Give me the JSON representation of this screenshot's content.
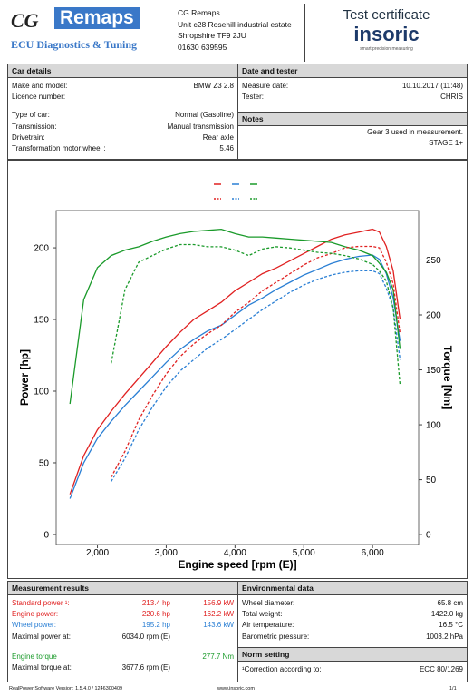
{
  "header": {
    "logo_left": "CG",
    "logo_right": "Remaps",
    "tagline": "ECU Diagnostics & Tuning",
    "address": [
      "CG Remaps",
      "Unit c28 Rosehill industrial estate",
      "Shropshire TF9 2JU",
      "01630 639595"
    ],
    "cert_title": "Test certificate",
    "brand": "insoric",
    "brand_tagline": "smart precision measuring"
  },
  "car_details": {
    "title": "Car details",
    "rows": [
      [
        "Make and model:",
        "BMW Z3 2.8"
      ],
      [
        "Licence number:"
      ],
      [
        "Type of car:",
        "Normal (Gasoline)"
      ],
      [
        "Transmission:",
        "Manual transmission"
      ],
      [
        "Drivetrain:",
        "Rear axle"
      ],
      [
        "Transformation motor:wheel :",
        "5.46"
      ]
    ]
  },
  "date_tester": {
    "title": "Date and tester",
    "rows": [
      [
        "Measure date:",
        "10.10.2017 (11:48)"
      ],
      [
        "Tester:",
        "CHRIS"
      ]
    ]
  },
  "notes": {
    "title": "Notes",
    "lines": [
      "Gear 3 used in measurement.",
      "STAGE 1+"
    ]
  },
  "chart": {
    "type": "line",
    "x_label": "Engine speed [rpm (E)]",
    "y_label": "Power [hp]",
    "y2_label": "Torque [Nm]",
    "x": [
      1600,
      1800,
      2000,
      2200,
      2400,
      2600,
      2800,
      3000,
      3200,
      3400,
      3600,
      3800,
      4000,
      4200,
      4400,
      4600,
      4800,
      5000,
      5200,
      5400,
      5600,
      5800,
      6000,
      6100,
      6200,
      6300,
      6400
    ],
    "xlim": [
      1400,
      6670
    ],
    "ylim": [
      -7,
      226
    ],
    "y2lim": [
      -9,
      295
    ],
    "xticks": [
      {
        "value": 2000,
        "label": "2,000"
      },
      {
        "value": 3000,
        "label": "3,000"
      },
      {
        "value": 4000,
        "label": "4,000"
      },
      {
        "value": 5000,
        "label": "5,000"
      },
      {
        "value": 6000,
        "label": "6,000"
      }
    ],
    "yticks": [
      0,
      50,
      100,
      150,
      200
    ],
    "y2ticks": [
      0,
      50,
      100,
      150,
      200,
      250
    ],
    "series": [
      {
        "color": "#e02020",
        "style": "solid",
        "values": [
          28,
          55,
          73,
          86,
          98,
          109,
          120,
          131,
          141,
          150,
          156,
          162,
          170,
          176,
          182,
          186,
          191,
          196,
          201,
          206,
          209,
          211,
          213,
          211,
          201,
          184,
          150
        ]
      },
      {
        "color": "#2a7fd4",
        "style": "solid",
        "values": [
          25,
          50,
          67,
          79,
          90,
          100,
          110,
          120,
          129,
          136,
          142,
          146,
          153,
          160,
          165,
          171,
          176,
          181,
          185,
          189,
          192,
          194,
          195,
          192,
          182,
          165,
          135
        ]
      },
      {
        "color": "#1a9a2a",
        "style": "solid",
        "axis": "y2",
        "values": [
          119,
          214,
          243,
          254,
          259,
          262,
          267,
          271,
          274,
          276,
          277,
          278,
          274,
          271,
          271,
          270,
          269,
          268,
          267,
          266,
          262,
          259,
          254,
          247,
          239,
          223,
          169
        ]
      },
      {
        "color": "#e02020",
        "style": "dashed",
        "values": [
          null,
          null,
          null,
          40,
          58,
          80,
          97,
          112,
          124,
          133,
          140,
          146,
          155,
          162,
          170,
          176,
          182,
          188,
          193,
          196,
          200,
          201,
          201,
          200,
          190,
          175,
          140
        ]
      },
      {
        "color": "#2a7fd4",
        "style": "dashed",
        "values": [
          null,
          null,
          null,
          37,
          53,
          73,
          89,
          103,
          114,
          122,
          130,
          136,
          143,
          150,
          157,
          163,
          169,
          174,
          178,
          181,
          183,
          184,
          184,
          182,
          172,
          158,
          122
        ]
      },
      {
        "color": "#1a9a2a",
        "style": "dashed",
        "axis": "y2",
        "values": [
          null,
          null,
          null,
          156,
          223,
          248,
          254,
          260,
          264,
          264,
          262,
          262,
          259,
          254,
          260,
          262,
          261,
          259,
          257,
          256,
          254,
          251,
          246,
          240,
          231,
          206,
          136
        ]
      }
    ]
  },
  "results": {
    "title": "Measurement results",
    "rows": [
      [
        "Standard power ¹:",
        "213.4 hp",
        "156.9 kW"
      ],
      [
        "Engine power:",
        "220.6 hp",
        "162.2 kW"
      ],
      [
        "Wheel power:",
        "195.2 hp",
        "143.6 kW"
      ],
      [
        "Maximal power at:",
        "6034.0 rpm (E)"
      ],
      [
        "Engine torque",
        "277.7 Nm"
      ],
      [
        "Maximal torque at:",
        "3677.6 rpm (E)"
      ]
    ]
  },
  "environment": {
    "title": "Environmental data",
    "rows": [
      [
        "Wheel diameter:",
        "65.8 cm"
      ],
      [
        "Total weight:",
        "1422.0 kg"
      ],
      [
        "Air temperature:",
        "16.5 °C"
      ],
      [
        "Barometric pressure:",
        "1003.2 hPa"
      ]
    ]
  },
  "norm": {
    "title": "Norm setting",
    "rows": [
      [
        "¹Correction according to:",
        "ECC 80/1269"
      ]
    ]
  },
  "footer": {
    "software": "RealPower Software Version: 1.5.4.0 / 1246300409",
    "website": "www.insoric.com",
    "page": "1/1"
  }
}
